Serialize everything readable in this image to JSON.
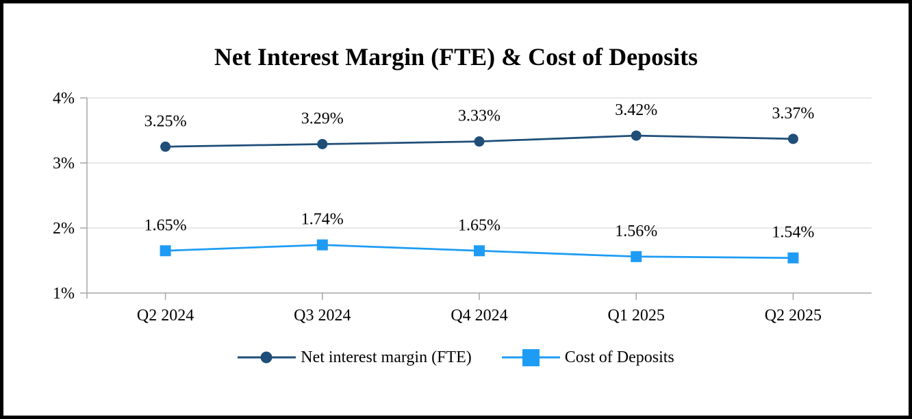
{
  "title": "Net Interest Margin (FTE) & Cost of Deposits",
  "chart_data": {
    "type": "line",
    "title": "Net Interest Margin (FTE) & Cost of Deposits",
    "categories": [
      "Q2 2024",
      "Q3 2024",
      "Q4 2024",
      "Q1 2025",
      "Q2 2025"
    ],
    "series": [
      {
        "name": "Net interest margin (FTE)",
        "values": [
          3.25,
          3.29,
          3.33,
          3.42,
          3.37
        ],
        "data_labels": [
          "3.25%",
          "3.29%",
          "3.33%",
          "3.42%",
          "3.37%"
        ],
        "color": "#1F4E79",
        "marker": "circle"
      },
      {
        "name": "Cost of Deposits",
        "values": [
          1.65,
          1.74,
          1.65,
          1.56,
          1.54
        ],
        "data_labels": [
          "1.65%",
          "1.74%",
          "1.65%",
          "1.56%",
          "1.54%"
        ],
        "color": "#1E9CF5",
        "marker": "square"
      }
    ],
    "y_axis": {
      "min": 1,
      "max": 4,
      "tick_values": [
        4,
        3,
        2,
        1
      ],
      "tick_labels": [
        "4%",
        "3%",
        "2%",
        "1%"
      ]
    },
    "xlabel": "",
    "ylabel": "",
    "ylim": [
      1,
      4
    ],
    "grid": true,
    "legend_position": "bottom",
    "colors": {
      "gridline": "#D9D9D9",
      "axis_line": "#A6A6A6",
      "text": "#000000",
      "background": "#FFFFFF",
      "frame_border": "#000000"
    }
  }
}
